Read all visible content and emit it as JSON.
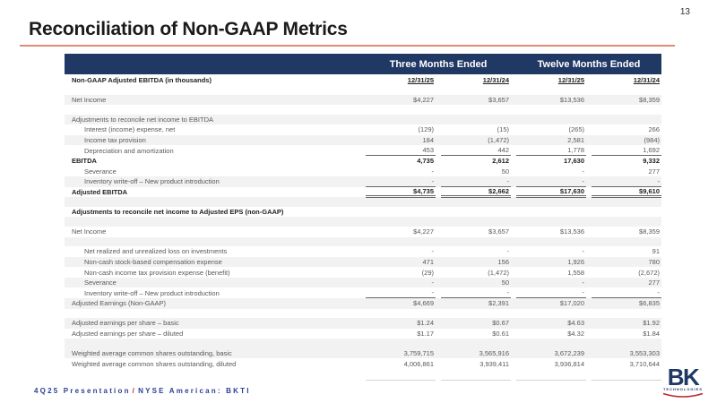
{
  "page": {
    "number": "13"
  },
  "title": "Reconciliation of Non-GAAP Metrics",
  "colors": {
    "header_bar": "#1F3864",
    "title_rule": "#E18A76",
    "footer_text": "#2B3F94",
    "accent_red": "#C4262E",
    "row_stripe": "#F2F2F2"
  },
  "table": {
    "group_headers": [
      "Three Months Ended",
      "Twelve Months Ended"
    ],
    "rows": [
      {
        "type": "head",
        "label": "Non-GAAP Adjusted EBITDA (in thousands)",
        "values": [
          "12/31/25",
          "12/31/24",
          "12/31/25",
          "12/31/24"
        ]
      },
      {
        "type": "blank"
      },
      {
        "type": "row",
        "shade": true,
        "label": "Net Income",
        "values": [
          "$4,227",
          "$3,657",
          "$13,536",
          "$8,359"
        ]
      },
      {
        "type": "blank"
      },
      {
        "type": "row",
        "shade": true,
        "label": "Adjustments to reconcile net income to EBITDA",
        "values": [
          "",
          "",
          "",
          ""
        ]
      },
      {
        "type": "row",
        "indent": 1,
        "label": "Interest (income) expense, net",
        "values": [
          "(129)",
          "(15)",
          "(265)",
          "266"
        ]
      },
      {
        "type": "row",
        "shade": true,
        "indent": 1,
        "label": "Income tax provision",
        "values": [
          "184",
          "(1,472)",
          "2,581",
          "(984)"
        ]
      },
      {
        "type": "row",
        "indent": 1,
        "line": "u",
        "label": "Depreciation and amortization",
        "values": [
          "453",
          "442",
          "1,778",
          "1,692"
        ]
      },
      {
        "type": "row",
        "bold": true,
        "label": "EBITDA",
        "values": [
          "4,735",
          "2,612",
          "17,630",
          "9,332"
        ]
      },
      {
        "type": "row",
        "indent": 1,
        "label": "Severance",
        "values": [
          "-",
          "50",
          "-",
          "277"
        ]
      },
      {
        "type": "row",
        "shade": true,
        "indent": 1,
        "line": "u",
        "label": "Inventory write-off – New product introduction",
        "values": [
          "-",
          "-",
          "-",
          "-"
        ]
      },
      {
        "type": "row",
        "bold": true,
        "line": "uu",
        "label": "Adjusted EBITDA",
        "values": [
          "$4,735",
          "$2,662",
          "$17,630",
          "$9,610"
        ]
      },
      {
        "type": "blank",
        "shade": true
      },
      {
        "type": "row",
        "bold": true,
        "label": "Adjustments to reconcile net income to Adjusted EPS (non-GAAP)",
        "values": [
          "",
          "",
          "",
          ""
        ]
      },
      {
        "type": "blank",
        "shade": true
      },
      {
        "type": "row",
        "label": "Net Income",
        "values": [
          "$4,227",
          "$3,657",
          "$13,536",
          "$8,359"
        ]
      },
      {
        "type": "blank",
        "shade": true
      },
      {
        "type": "row",
        "indent": 1,
        "label": "Net realized and unrealized loss on investments",
        "values": [
          "-",
          "-",
          "-",
          "91"
        ]
      },
      {
        "type": "row",
        "shade": true,
        "indent": 1,
        "label": "Non-cash stock-based compensation expense",
        "values": [
          "471",
          "156",
          "1,926",
          "780"
        ]
      },
      {
        "type": "row",
        "indent": 1,
        "label": "Non-cash income tax provision expense (benefit)",
        "values": [
          "(29)",
          "(1,472)",
          "1,558",
          "(2,672)"
        ]
      },
      {
        "type": "row",
        "shade": true,
        "indent": 1,
        "label": "Severance",
        "values": [
          "-",
          "50",
          "-",
          "277"
        ]
      },
      {
        "type": "row",
        "indent": 1,
        "line": "u",
        "label": "Inventory write-off – New product introduction",
        "values": [
          "-",
          "-",
          "-",
          "-"
        ]
      },
      {
        "type": "row",
        "shade": true,
        "label": "Adjusted Earnings (Non-GAAP)",
        "values": [
          "$4,669",
          "$2,391",
          "$17,020",
          "$6,835"
        ]
      },
      {
        "type": "blank"
      },
      {
        "type": "row",
        "shade": true,
        "label": "Adjusted earnings per share – basic",
        "values": [
          "$1.24",
          "$0.67",
          "$4.63",
          "$1.92"
        ]
      },
      {
        "type": "row",
        "label": "Adjusted earnings per share – diluted",
        "values": [
          "$1.17",
          "$0.61",
          "$4.32",
          "$1.84"
        ]
      },
      {
        "type": "blank",
        "shade": true
      },
      {
        "type": "row",
        "shade": true,
        "label": "Weighted average common shares outstanding, basic",
        "values": [
          "3,759,715",
          "3,565,916",
          "3,672,239",
          "3,553,303"
        ]
      },
      {
        "type": "row",
        "label": "Weighted average common shares outstanding, diluted",
        "values": [
          "4,006,861",
          "3,939,411",
          "3,936,814",
          "3,710,644"
        ]
      },
      {
        "type": "ghost"
      }
    ]
  },
  "footer": {
    "left": "4Q25 Presentation",
    "slash": "/",
    "right": "NYSE American: BKTI"
  },
  "logo": {
    "text": "BK",
    "subtext": "TECHNOLOGIES"
  }
}
